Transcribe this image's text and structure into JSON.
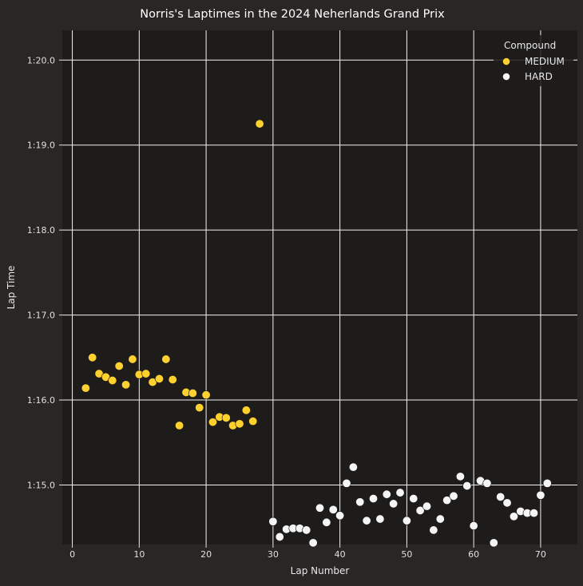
{
  "chart_data": {
    "type": "scatter",
    "title": "Norris's Laptimes in the 2024 Neherlands Grand Prix",
    "xlabel": "Lap Number",
    "ylabel": "Lap Time",
    "xlim": [
      -1.5,
      75.5
    ],
    "ylim_seconds": [
      74.3,
      80.35
    ],
    "xticks": [
      0,
      10,
      20,
      30,
      40,
      50,
      60,
      70
    ],
    "yticks_seconds": [
      75,
      76,
      77,
      78,
      79,
      80
    ],
    "ytick_labels": [
      "1:15.0",
      "1:16.0",
      "1:17.0",
      "1:18.0",
      "1:19.0",
      "1:20.0"
    ],
    "grid": true,
    "legend": {
      "title": "Compound",
      "placement": "top-right",
      "entries": [
        "MEDIUM",
        "HARD"
      ]
    },
    "series": [
      {
        "name": "MEDIUM",
        "color": "#ffd12e",
        "laps": [
          2,
          3,
          4,
          5,
          6,
          7,
          8,
          9,
          10,
          11,
          12,
          13,
          14,
          15,
          16,
          17,
          18,
          19,
          20,
          21,
          22,
          23,
          24,
          25,
          26,
          27,
          28
        ],
        "times_seconds": [
          76.14,
          76.5,
          76.31,
          76.27,
          76.23,
          76.4,
          76.18,
          76.48,
          76.3,
          76.31,
          76.21,
          76.25,
          76.48,
          76.24,
          75.7,
          76.09,
          76.08,
          75.91,
          76.06,
          75.74,
          75.8,
          75.79,
          75.7,
          75.72,
          75.88,
          75.75,
          79.25
        ]
      },
      {
        "name": "HARD",
        "color": "#f5f5f5",
        "laps": [
          30,
          31,
          32,
          33,
          34,
          35,
          36,
          37,
          38,
          39,
          40,
          41,
          42,
          43,
          44,
          45,
          46,
          47,
          48,
          49,
          50,
          51,
          52,
          53,
          54,
          55,
          56,
          57,
          58,
          59,
          60,
          61,
          62,
          63,
          64,
          65,
          66,
          67,
          68,
          69,
          70,
          71
        ],
        "times_seconds": [
          74.57,
          74.39,
          74.48,
          74.49,
          74.49,
          74.47,
          74.32,
          74.73,
          74.56,
          74.71,
          74.64,
          75.02,
          75.21,
          74.8,
          74.58,
          74.84,
          74.6,
          74.89,
          74.78,
          74.91,
          74.58,
          74.84,
          74.7,
          74.75,
          74.47,
          74.6,
          74.82,
          74.87,
          75.1,
          74.99,
          74.52,
          75.05,
          75.02,
          74.32,
          74.86,
          74.79,
          74.63,
          74.69,
          74.67,
          74.67,
          74.88,
          75.02
        ]
      }
    ]
  }
}
